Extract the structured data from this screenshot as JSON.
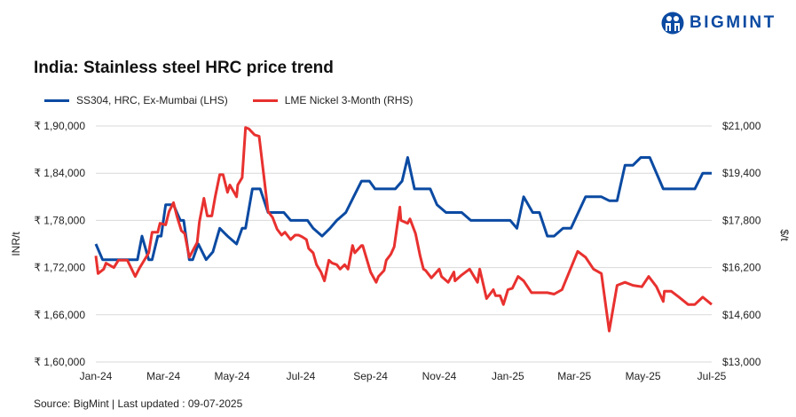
{
  "brand": {
    "name": "BIGMINT",
    "color": "#0b4aa2"
  },
  "footer": {
    "source": "Source: BigMint | Last updated : 09-07-2025"
  },
  "chart_data": {
    "type": "line",
    "title": "India: Stainless steel HRC price trend",
    "ylabel": "INR/t",
    "y2label": "$/t",
    "ylim": [
      160000,
      190000
    ],
    "y2lim": [
      13000,
      21000
    ],
    "yticks": [
      "₹ 1,60,000",
      "₹ 1,66,000",
      "₹ 1,72,000",
      "₹ 1,78,000",
      "₹ 1,84,000",
      "₹ 1,90,000"
    ],
    "y2ticks": [
      "$13,000",
      "$14,600",
      "$16,200",
      "$17,800",
      "$19,400",
      "$21,000"
    ],
    "xlim": [
      "2024-01-01",
      "2025-07-01"
    ],
    "xticks": [
      {
        "date": "2024-01-01",
        "label": "Jan-24"
      },
      {
        "date": "2024-03-01",
        "label": "Mar-24"
      },
      {
        "date": "2024-05-01",
        "label": "May-24"
      },
      {
        "date": "2024-07-01",
        "label": "Jul-24"
      },
      {
        "date": "2024-09-01",
        "label": "Sep-24"
      },
      {
        "date": "2024-11-01",
        "label": "Nov-24"
      },
      {
        "date": "2025-01-01",
        "label": "Jan-25"
      },
      {
        "date": "2025-03-01",
        "label": "Mar-25"
      },
      {
        "date": "2025-05-01",
        "label": "May-25"
      },
      {
        "date": "2025-07-01",
        "label": "Jul-25"
      }
    ],
    "grid": true,
    "legend_position": "top-left",
    "series": [
      {
        "name": "SS304, HRC, Ex-Mumbai (LHS)",
        "axis": "left",
        "color": "#0b4aa2",
        "points": [
          [
            "2024-01-01",
            175000
          ],
          [
            "2024-01-07",
            173000
          ],
          [
            "2024-02-07",
            173000
          ],
          [
            "2024-02-11",
            176000
          ],
          [
            "2024-02-17",
            173000
          ],
          [
            "2024-02-20",
            173000
          ],
          [
            "2024-02-25",
            176000
          ],
          [
            "2024-02-28",
            176000
          ],
          [
            "2024-03-03",
            180000
          ],
          [
            "2024-03-10",
            180000
          ],
          [
            "2024-03-16",
            178000
          ],
          [
            "2024-03-19",
            178000
          ],
          [
            "2024-03-24",
            173000
          ],
          [
            "2024-03-27",
            173000
          ],
          [
            "2024-04-01",
            175000
          ],
          [
            "2024-04-08",
            173000
          ],
          [
            "2024-04-14",
            174000
          ],
          [
            "2024-04-20",
            177000
          ],
          [
            "2024-04-27",
            176000
          ],
          [
            "2024-05-05",
            175000
          ],
          [
            "2024-05-10",
            177000
          ],
          [
            "2024-05-13",
            177000
          ],
          [
            "2024-05-19",
            182000
          ],
          [
            "2024-05-26",
            182000
          ],
          [
            "2024-06-02",
            179000
          ],
          [
            "2024-06-16",
            179000
          ],
          [
            "2024-06-22",
            178000
          ],
          [
            "2024-07-07",
            178000
          ],
          [
            "2024-07-12",
            177000
          ],
          [
            "2024-07-20",
            176000
          ],
          [
            "2024-07-27",
            177000
          ],
          [
            "2024-08-02",
            178000
          ],
          [
            "2024-08-10",
            179000
          ],
          [
            "2024-08-17",
            181000
          ],
          [
            "2024-08-24",
            183000
          ],
          [
            "2024-08-31",
            183000
          ],
          [
            "2024-09-05",
            182000
          ],
          [
            "2024-09-23",
            182000
          ],
          [
            "2024-09-29",
            183000
          ],
          [
            "2024-10-04",
            186000
          ],
          [
            "2024-10-10",
            182000
          ],
          [
            "2024-10-24",
            182000
          ],
          [
            "2024-10-30",
            180000
          ],
          [
            "2024-11-07",
            179000
          ],
          [
            "2024-11-21",
            179000
          ],
          [
            "2024-11-29",
            178000
          ],
          [
            "2025-01-03",
            178000
          ],
          [
            "2025-01-09",
            177000
          ],
          [
            "2025-01-15",
            181000
          ],
          [
            "2025-01-23",
            179000
          ],
          [
            "2025-01-29",
            179000
          ],
          [
            "2025-02-05",
            176000
          ],
          [
            "2025-02-11",
            176000
          ],
          [
            "2025-02-19",
            177000
          ],
          [
            "2025-02-26",
            177000
          ],
          [
            "2025-03-11",
            181000
          ],
          [
            "2025-03-25",
            181000
          ],
          [
            "2025-04-01",
            180500
          ],
          [
            "2025-04-08",
            180500
          ],
          [
            "2025-04-15",
            185000
          ],
          [
            "2025-04-22",
            185000
          ],
          [
            "2025-04-29",
            186000
          ],
          [
            "2025-05-07",
            186000
          ],
          [
            "2025-05-19",
            182000
          ],
          [
            "2025-06-16",
            182000
          ],
          [
            "2025-06-23",
            184000
          ],
          [
            "2025-07-01",
            184000
          ]
        ]
      },
      {
        "name": "LME Nickel 3-Month (RHS)",
        "axis": "right",
        "color": "#e8312f",
        "points": [
          [
            "2024-01-01",
            16600
          ],
          [
            "2024-01-03",
            16000
          ],
          [
            "2024-01-08",
            16150
          ],
          [
            "2024-01-10",
            16350
          ],
          [
            "2024-01-17",
            16200
          ],
          [
            "2024-01-21",
            16450
          ],
          [
            "2024-01-29",
            16450
          ],
          [
            "2024-02-05",
            15900
          ],
          [
            "2024-02-09",
            16200
          ],
          [
            "2024-02-17",
            16700
          ],
          [
            "2024-02-20",
            17400
          ],
          [
            "2024-02-25",
            17400
          ],
          [
            "2024-02-27",
            17700
          ],
          [
            "2024-03-03",
            17650
          ],
          [
            "2024-03-06",
            18100
          ],
          [
            "2024-03-10",
            18400
          ],
          [
            "2024-03-13",
            17950
          ],
          [
            "2024-03-17",
            17450
          ],
          [
            "2024-03-20",
            17350
          ],
          [
            "2024-03-24",
            16550
          ],
          [
            "2024-03-31",
            17050
          ],
          [
            "2024-04-02",
            17750
          ],
          [
            "2024-04-06",
            18550
          ],
          [
            "2024-04-09",
            17950
          ],
          [
            "2024-04-13",
            17950
          ],
          [
            "2024-04-16",
            18600
          ],
          [
            "2024-04-20",
            19350
          ],
          [
            "2024-04-23",
            19350
          ],
          [
            "2024-04-27",
            18750
          ],
          [
            "2024-04-29",
            19000
          ],
          [
            "2024-05-05",
            18600
          ],
          [
            "2024-05-06",
            19000
          ],
          [
            "2024-05-10",
            19250
          ],
          [
            "2024-05-13",
            20950
          ],
          [
            "2024-05-16",
            20900
          ],
          [
            "2024-05-21",
            20700
          ],
          [
            "2024-05-25",
            20650
          ],
          [
            "2024-06-02",
            18100
          ],
          [
            "2024-06-06",
            17900
          ],
          [
            "2024-06-10",
            17500
          ],
          [
            "2024-06-14",
            17300
          ],
          [
            "2024-06-17",
            17400
          ],
          [
            "2024-06-22",
            17150
          ],
          [
            "2024-06-26",
            17300
          ],
          [
            "2024-06-29",
            17300
          ],
          [
            "2024-07-02",
            17250
          ],
          [
            "2024-07-06",
            17150
          ],
          [
            "2024-07-08",
            16850
          ],
          [
            "2024-07-12",
            16700
          ],
          [
            "2024-07-15",
            16300
          ],
          [
            "2024-07-19",
            16050
          ],
          [
            "2024-07-22",
            15750
          ],
          [
            "2024-07-26",
            16450
          ],
          [
            "2024-07-29",
            16350
          ],
          [
            "2024-08-02",
            16300
          ],
          [
            "2024-08-05",
            16150
          ],
          [
            "2024-08-09",
            16300
          ],
          [
            "2024-08-12",
            16150
          ],
          [
            "2024-08-16",
            16950
          ],
          [
            "2024-08-18",
            16700
          ],
          [
            "2024-08-24",
            16950
          ],
          [
            "2024-08-25",
            16950
          ],
          [
            "2024-09-01",
            16050
          ],
          [
            "2024-09-06",
            15700
          ],
          [
            "2024-09-08",
            15900
          ],
          [
            "2024-09-13",
            16100
          ],
          [
            "2024-09-15",
            16450
          ],
          [
            "2024-09-19",
            16650
          ],
          [
            "2024-09-22",
            16900
          ],
          [
            "2024-09-27",
            18250
          ],
          [
            "2024-09-28",
            17800
          ],
          [
            "2024-10-04",
            17700
          ],
          [
            "2024-10-06",
            17850
          ],
          [
            "2024-10-11",
            17350
          ],
          [
            "2024-10-15",
            16600
          ],
          [
            "2024-10-18",
            16150
          ],
          [
            "2024-10-20",
            16100
          ],
          [
            "2024-10-25",
            15850
          ],
          [
            "2024-11-01",
            16150
          ],
          [
            "2024-11-03",
            15900
          ],
          [
            "2024-11-09",
            15700
          ],
          [
            "2024-11-14",
            16050
          ],
          [
            "2024-11-15",
            15750
          ],
          [
            "2024-11-21",
            15950
          ],
          [
            "2024-11-28",
            16150
          ],
          [
            "2024-12-05",
            15700
          ],
          [
            "2024-12-07",
            16150
          ],
          [
            "2024-12-13",
            15150
          ],
          [
            "2024-12-19",
            15450
          ],
          [
            "2024-12-21",
            15250
          ],
          [
            "2024-12-25",
            15250
          ],
          [
            "2024-12-28",
            14950
          ],
          [
            "2025-01-01",
            15450
          ],
          [
            "2025-01-05",
            15500
          ],
          [
            "2025-01-10",
            15900
          ],
          [
            "2025-01-15",
            15750
          ],
          [
            "2025-01-22",
            15350
          ],
          [
            "2025-02-05",
            15350
          ],
          [
            "2025-02-11",
            15300
          ],
          [
            "2025-02-18",
            15450
          ],
          [
            "2025-03-04",
            16750
          ],
          [
            "2025-03-11",
            16550
          ],
          [
            "2025-03-18",
            16150
          ],
          [
            "2025-03-25",
            16000
          ],
          [
            "2025-04-01",
            14050
          ],
          [
            "2025-04-08",
            15600
          ],
          [
            "2025-04-15",
            15700
          ],
          [
            "2025-04-22",
            15600
          ],
          [
            "2025-04-30",
            15550
          ],
          [
            "2025-05-06",
            15900
          ],
          [
            "2025-05-13",
            15550
          ],
          [
            "2025-05-19",
            15050
          ],
          [
            "2025-05-20",
            15400
          ],
          [
            "2025-05-26",
            15400
          ],
          [
            "2025-06-02",
            15200
          ],
          [
            "2025-06-10",
            14950
          ],
          [
            "2025-06-16",
            14950
          ],
          [
            "2025-06-23",
            15200
          ],
          [
            "2025-07-01",
            14950
          ]
        ]
      }
    ]
  }
}
